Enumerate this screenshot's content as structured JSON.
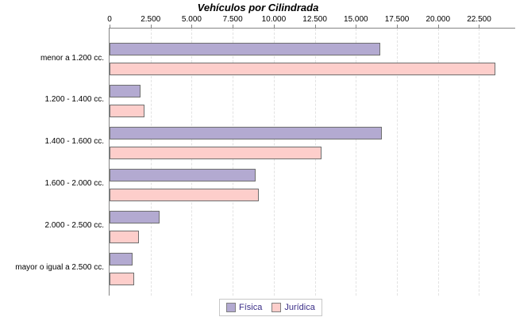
{
  "chart_data": {
    "type": "bar",
    "orientation": "horizontal",
    "title": "Vehículos por Cilindrada",
    "categories": [
      "menor a 1.200 cc.",
      "1.200 - 1.400 cc.",
      "1.400 - 1.600 cc.",
      "1.600 - 2.000 cc.",
      "2.000 - 2.500 cc.",
      "mayor o igual a 2.500 cc."
    ],
    "series": [
      {
        "name": "Física",
        "color": "#b3aad1",
        "values": [
          16400,
          1800,
          16500,
          8800,
          2950,
          1300
        ]
      },
      {
        "name": "Jurídica",
        "color": "#fdcecb",
        "values": [
          23400,
          2050,
          12800,
          9000,
          1700,
          1400
        ]
      }
    ],
    "x_ticks": {
      "values": [
        0,
        2500,
        5000,
        7500,
        10000,
        12500,
        15000,
        17500,
        20000,
        22500
      ],
      "labels": [
        "0",
        "2.500",
        "5.000",
        "7.500",
        "10.000",
        "12.500",
        "15.000",
        "17.500",
        "20.000",
        "22.500"
      ]
    },
    "xlim": [
      0,
      24700
    ],
    "grid": "vertical-dashed",
    "legend_position": "bottom",
    "colors": {
      "axis": "#848484",
      "gridline": "#e2e2e2",
      "bar_border": "#6e6e6e",
      "legend_text": "#3a2d87",
      "legend_border": "#c8c8c8"
    }
  }
}
